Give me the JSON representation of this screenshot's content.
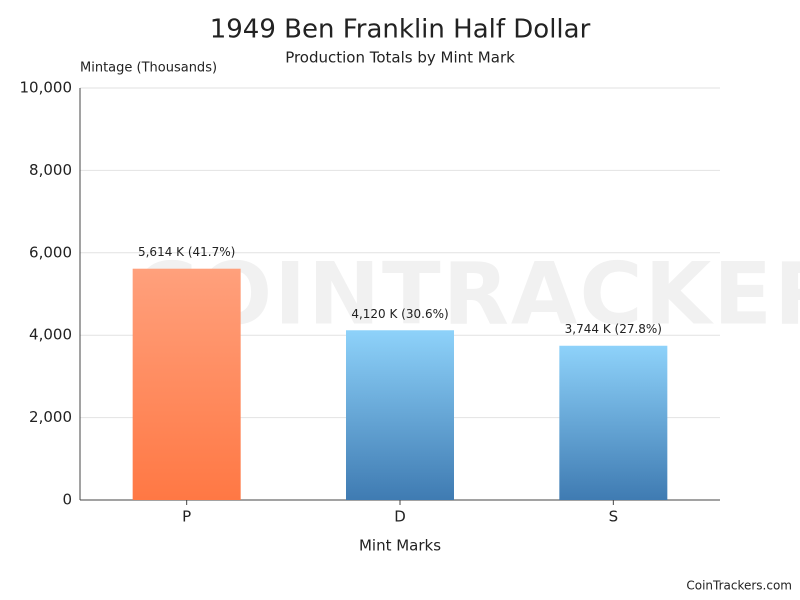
{
  "chart_data": {
    "type": "bar",
    "title": "1949 Ben Franklin Half Dollar",
    "subtitle": "Production Totals by Mint Mark",
    "y_label": "Mintage (Thousands)",
    "x_label": "Mint Marks",
    "categories": [
      "P",
      "D",
      "S"
    ],
    "values": [
      5614,
      4120,
      3744
    ],
    "value_labels": [
      "5,614 K (41.7%)",
      "4,120 K (30.6%)",
      "3,744 K (27.8%)"
    ],
    "colors": [
      {
        "top": "#ffa07c",
        "bottom": "#ff7844"
      },
      {
        "top": "#8ed2fa",
        "bottom": "#3f7bb2"
      },
      {
        "top": "#8ed2fa",
        "bottom": "#3f7bb2"
      }
    ],
    "ylim": [
      0,
      10000
    ],
    "yticks": [
      0,
      {
        "value": 2000,
        "label": "2,000"
      },
      {
        "value": 4000,
        "label": "4,000"
      },
      {
        "value": 6000,
        "label": "6,000"
      },
      {
        "value": 8000,
        "label": "8,000"
      },
      {
        "value": 10000,
        "label": "10,000"
      }
    ],
    "grid": true,
    "watermark": "COINTRACKERS",
    "credit": "CoinTrackers.com"
  }
}
